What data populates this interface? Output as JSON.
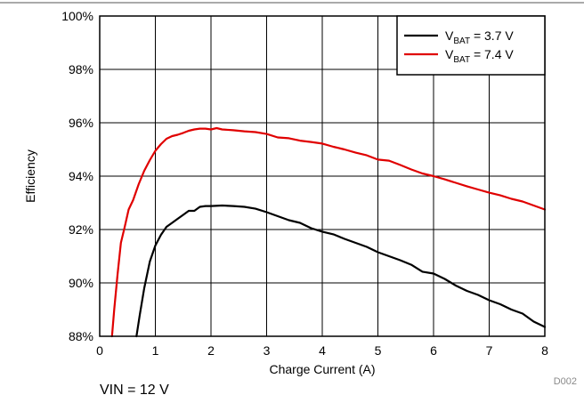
{
  "chart_data": {
    "type": "line",
    "xlabel": "Charge Current (A)",
    "ylabel": "Efficiency",
    "xlim": [
      0,
      8
    ],
    "ylim": [
      88,
      100
    ],
    "x_ticks": [
      "0",
      "1",
      "2",
      "3",
      "4",
      "5",
      "6",
      "7",
      "8"
    ],
    "y_ticks": [
      "88%",
      "90%",
      "92%",
      "94%",
      "96%",
      "98%",
      "100%"
    ],
    "grid": true,
    "legend_position": "top-right",
    "series": [
      {
        "name": "V_BAT = 3.7 V",
        "label_main": "V",
        "label_sub": "BAT",
        "label_rest": " = 3.7 V",
        "color": "#000000",
        "points": [
          [
            0.66,
            88.0
          ],
          [
            0.72,
            88.8
          ],
          [
            0.8,
            89.8
          ],
          [
            0.9,
            90.8
          ],
          [
            1.0,
            91.4
          ],
          [
            1.1,
            91.8
          ],
          [
            1.2,
            92.1
          ],
          [
            1.3,
            92.25
          ],
          [
            1.4,
            92.4
          ],
          [
            1.5,
            92.55
          ],
          [
            1.6,
            92.7
          ],
          [
            1.7,
            92.7
          ],
          [
            1.8,
            92.85
          ],
          [
            1.9,
            92.88
          ],
          [
            2.0,
            92.88
          ],
          [
            2.2,
            92.9
          ],
          [
            2.4,
            92.88
          ],
          [
            2.6,
            92.85
          ],
          [
            2.8,
            92.78
          ],
          [
            3.0,
            92.65
          ],
          [
            3.2,
            92.5
          ],
          [
            3.4,
            92.35
          ],
          [
            3.6,
            92.25
          ],
          [
            3.8,
            92.05
          ],
          [
            4.0,
            91.92
          ],
          [
            4.2,
            91.82
          ],
          [
            4.4,
            91.65
          ],
          [
            4.6,
            91.5
          ],
          [
            4.8,
            91.35
          ],
          [
            5.0,
            91.15
          ],
          [
            5.2,
            91.0
          ],
          [
            5.4,
            90.85
          ],
          [
            5.6,
            90.68
          ],
          [
            5.8,
            90.42
          ],
          [
            6.0,
            90.35
          ],
          [
            6.2,
            90.15
          ],
          [
            6.4,
            89.9
          ],
          [
            6.6,
            89.7
          ],
          [
            6.8,
            89.55
          ],
          [
            7.0,
            89.35
          ],
          [
            7.2,
            89.2
          ],
          [
            7.4,
            89.0
          ],
          [
            7.6,
            88.85
          ],
          [
            7.8,
            88.55
          ],
          [
            8.0,
            88.35
          ]
        ]
      },
      {
        "name": "V_BAT = 7.4 V",
        "label_main": "V",
        "label_sub": "BAT",
        "label_rest": " = 7.4 V",
        "color": "#e00000",
        "points": [
          [
            0.22,
            88.0
          ],
          [
            0.26,
            89.0
          ],
          [
            0.32,
            90.3
          ],
          [
            0.38,
            91.5
          ],
          [
            0.45,
            92.1
          ],
          [
            0.52,
            92.75
          ],
          [
            0.6,
            93.1
          ],
          [
            0.7,
            93.7
          ],
          [
            0.8,
            94.2
          ],
          [
            0.9,
            94.6
          ],
          [
            1.0,
            94.95
          ],
          [
            1.1,
            95.2
          ],
          [
            1.2,
            95.4
          ],
          [
            1.3,
            95.5
          ],
          [
            1.4,
            95.55
          ],
          [
            1.5,
            95.62
          ],
          [
            1.6,
            95.7
          ],
          [
            1.7,
            95.75
          ],
          [
            1.8,
            95.78
          ],
          [
            1.9,
            95.78
          ],
          [
            2.0,
            95.75
          ],
          [
            2.1,
            95.8
          ],
          [
            2.2,
            95.75
          ],
          [
            2.4,
            95.72
          ],
          [
            2.6,
            95.68
          ],
          [
            2.8,
            95.65
          ],
          [
            3.0,
            95.58
          ],
          [
            3.2,
            95.45
          ],
          [
            3.4,
            95.42
          ],
          [
            3.6,
            95.33
          ],
          [
            3.8,
            95.28
          ],
          [
            4.0,
            95.22
          ],
          [
            4.2,
            95.1
          ],
          [
            4.4,
            95.0
          ],
          [
            4.6,
            94.88
          ],
          [
            4.8,
            94.78
          ],
          [
            5.0,
            94.62
          ],
          [
            5.2,
            94.58
          ],
          [
            5.4,
            94.42
          ],
          [
            5.6,
            94.25
          ],
          [
            5.8,
            94.1
          ],
          [
            6.0,
            94.0
          ],
          [
            6.2,
            93.88
          ],
          [
            6.4,
            93.75
          ],
          [
            6.6,
            93.62
          ],
          [
            6.8,
            93.5
          ],
          [
            7.0,
            93.38
          ],
          [
            7.2,
            93.28
          ],
          [
            7.4,
            93.15
          ],
          [
            7.6,
            93.05
          ],
          [
            7.8,
            92.9
          ],
          [
            8.0,
            92.75
          ]
        ]
      }
    ]
  },
  "source_id": "D002",
  "footnote": "VIN = 12 V"
}
